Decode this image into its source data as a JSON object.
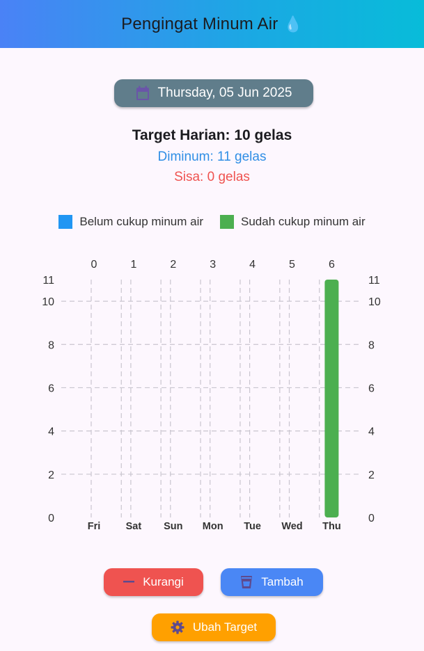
{
  "appbar": {
    "title": "Pengingat Minum Air",
    "icon": "water-drop-icon",
    "icon_glyph": "💧"
  },
  "date": {
    "label": "Thursday, 05 Jun 2025",
    "icon": "calendar-icon"
  },
  "summary": {
    "target": "Target Harian: 10 gelas",
    "drunk": "Diminum: 11 gelas",
    "remaining": "Sisa: 0 gelas"
  },
  "legend": [
    {
      "label": "Belum cukup minum air",
      "color": "#2196f3"
    },
    {
      "label": "Sudah cukup minum air",
      "color": "#4caf50"
    }
  ],
  "chart_data": {
    "type": "bar",
    "categories": [
      "Fri",
      "Sat",
      "Sun",
      "Mon",
      "Tue",
      "Wed",
      "Thu"
    ],
    "top_axis_labels": [
      "0",
      "1",
      "2",
      "3",
      "4",
      "5",
      "6"
    ],
    "values": [
      0,
      0,
      0,
      0,
      0,
      0,
      11
    ],
    "bar_colors": [
      "#2196f3",
      "#2196f3",
      "#2196f3",
      "#2196f3",
      "#2196f3",
      "#2196f3",
      "#4caf50"
    ],
    "ylim": [
      0,
      11
    ],
    "y_ticks": [
      0,
      2,
      4,
      6,
      8,
      10,
      11
    ],
    "grid": true,
    "target_line": 10
  },
  "buttons": {
    "decrease": "Kurangi",
    "increase": "Tambah",
    "change_target": "Ubah Target"
  },
  "colors": {
    "danger": "#ef5350",
    "primary": "#4a87f5",
    "warning": "#ffa000",
    "chip": "#607d8b",
    "icon_purple": "#5e4a8e"
  }
}
